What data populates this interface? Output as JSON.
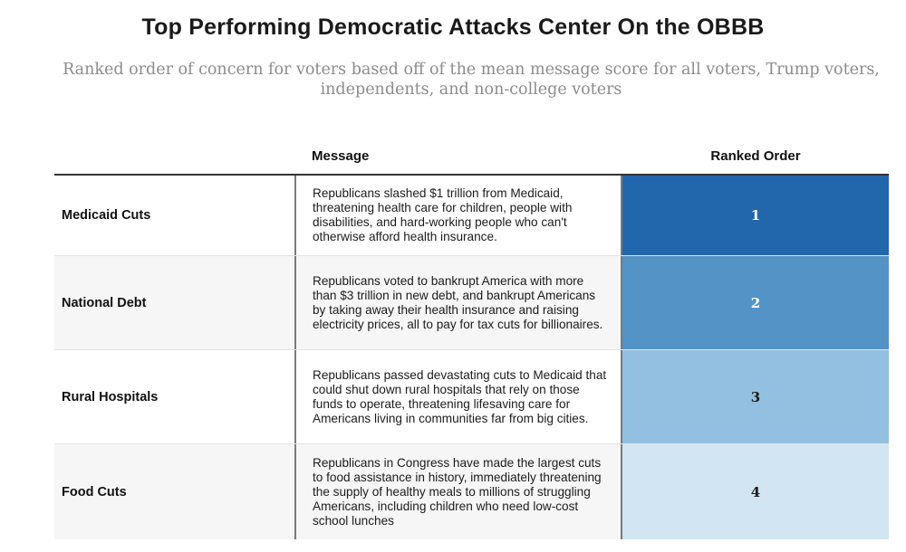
{
  "chart_data": {
    "type": "table",
    "title": "Top Performing Democratic Attacks Center On the OBBB",
    "subtitle": "Ranked order of concern for voters based off of the mean message score for all voters, Trump voters, independents, and non-college voters",
    "columns": [
      "",
      "Message",
      "Ranked Order"
    ],
    "rows": [
      {
        "label": "Medicaid Cuts",
        "message": "Republicans slashed $1 trillion from Medicaid, threatening health care for children, people with disabilities, and hard-working people who can't otherwise afford health insurance.",
        "rank": 1,
        "rank_label": "1",
        "rank_color": "#2266ab",
        "rank_text_color": "#ffffff"
      },
      {
        "label": "National Debt",
        "message": "Republicans voted to bankrupt America with more than $3 trillion in new debt, and bankrupt Americans by taking away their health insurance and raising electricity prices, all to pay for tax cuts for billionaires.",
        "rank": 2,
        "rank_label": "2",
        "rank_color": "#5493c6",
        "rank_text_color": "#ffffff"
      },
      {
        "label": "Rural Hospitals",
        "message": "Republicans passed devastating cuts to Medicaid that could shut down rural hospitals that rely on those funds to operate, threatening lifesaving care for Americans living in communities far from big cities.",
        "rank": 3,
        "rank_label": "3",
        "rank_color": "#93bfe0",
        "rank_text_color": "#1a1a1a"
      },
      {
        "label": "Food Cuts",
        "message": "Republicans in Congress have made the largest cuts to food assistance in history, immediately threatening the supply of healthy meals to millions of struggling Americans, including children who need low-cost school lunches",
        "rank": 4,
        "rank_label": "4",
        "rank_color": "#d2e5f2",
        "rank_text_color": "#1a1a1a"
      }
    ]
  }
}
